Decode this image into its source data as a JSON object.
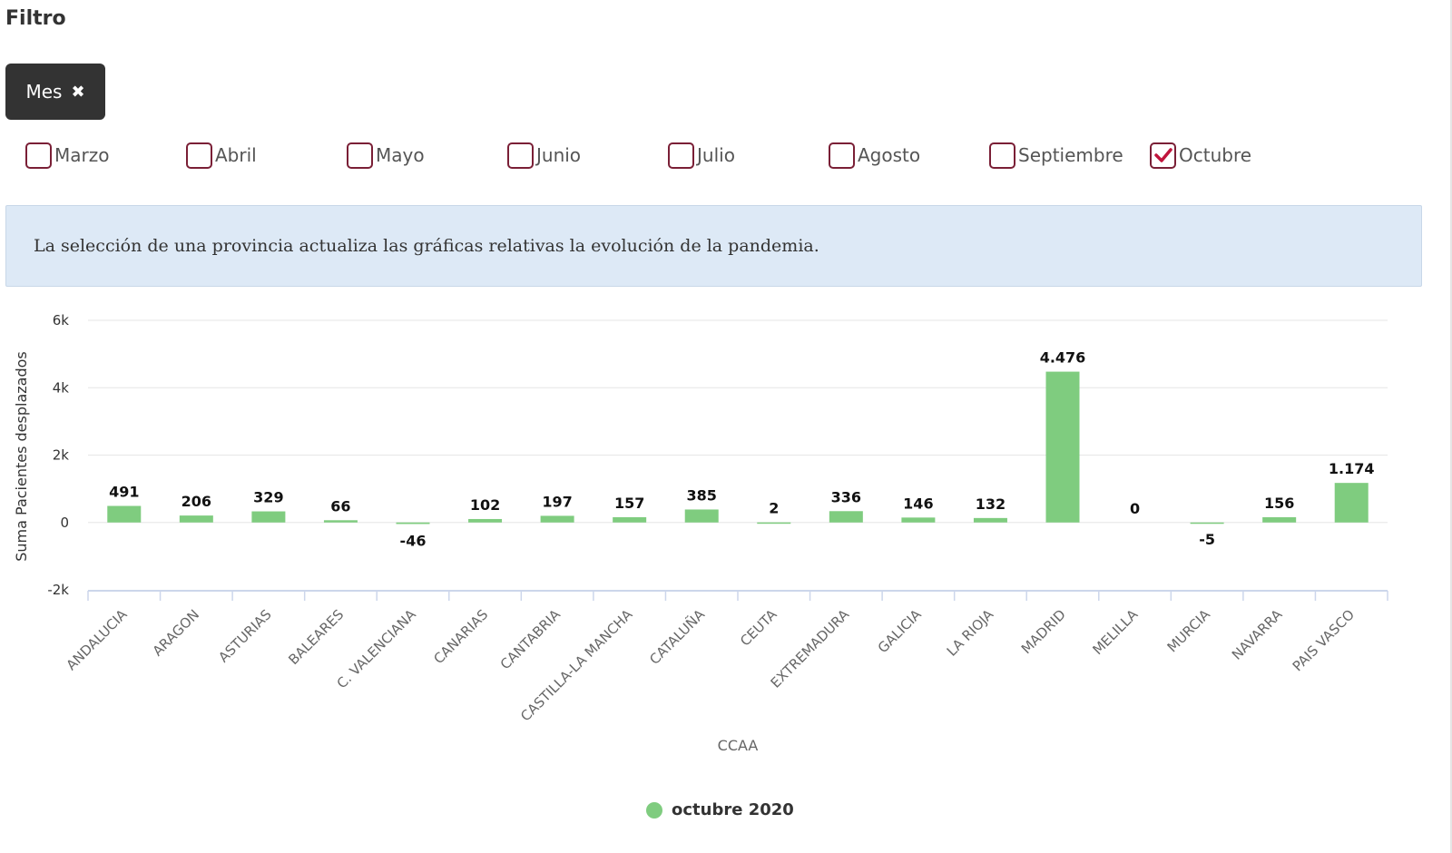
{
  "filter": {
    "title": "Filtro",
    "chip_label": "Mes",
    "chip_close_glyph": "✖"
  },
  "months": [
    {
      "label": "Marzo",
      "checked": false
    },
    {
      "label": "Abril",
      "checked": false
    },
    {
      "label": "Mayo",
      "checked": false
    },
    {
      "label": "Junio",
      "checked": false
    },
    {
      "label": "Julio",
      "checked": false
    },
    {
      "label": "Agosto",
      "checked": false
    },
    {
      "label": "Septiembre",
      "checked": false
    },
    {
      "label": "Octubre",
      "checked": true
    }
  ],
  "info": {
    "message": "La selección de una provincia actualiza las gráficas relativas la evolución de la pandemia."
  },
  "colors": {
    "bar": "#7fcc7f",
    "checkbox_border": "#7a1f36",
    "check_mark": "#c0143c",
    "chip_bg": "#333333",
    "info_bg": "#dde9f6"
  },
  "chart_data": {
    "type": "bar",
    "ylabel": "Suma Pacientes desplazados",
    "xlabel": "CCAA",
    "ylim": [
      -2000,
      6000
    ],
    "yticks": [
      {
        "value": 6000,
        "label": "6k"
      },
      {
        "value": 4000,
        "label": "4k"
      },
      {
        "value": 2000,
        "label": "2k"
      },
      {
        "value": 0,
        "label": "0"
      },
      {
        "value": -2000,
        "label": "-2k"
      }
    ],
    "grid": true,
    "legend_position": "bottom-center",
    "categories": [
      "ANDALUCIA",
      "ARAGON",
      "ASTURIAS",
      "BALEARES",
      "C. VALENCIANA",
      "CANARIAS",
      "CANTABRIA",
      "CASTILLA-LA MANCHA",
      "CATALUÑA",
      "CEUTA",
      "EXTREMADURA",
      "GALICIA",
      "LA RIOJA",
      "MADRID",
      "MELILLA",
      "MURCIA",
      "NAVARRA",
      "PAIS VASCO"
    ],
    "series": [
      {
        "name": "octubre 2020",
        "values": [
          491,
          206,
          329,
          66,
          -46,
          102,
          197,
          157,
          385,
          2,
          336,
          146,
          132,
          4476,
          0,
          -5,
          156,
          1174
        ],
        "labels": [
          "491",
          "206",
          "329",
          "66",
          "-46",
          "102",
          "197",
          "157",
          "385",
          "2",
          "336",
          "146",
          "132",
          "4.476",
          "0",
          "-5",
          "156",
          "1.174"
        ]
      }
    ]
  }
}
